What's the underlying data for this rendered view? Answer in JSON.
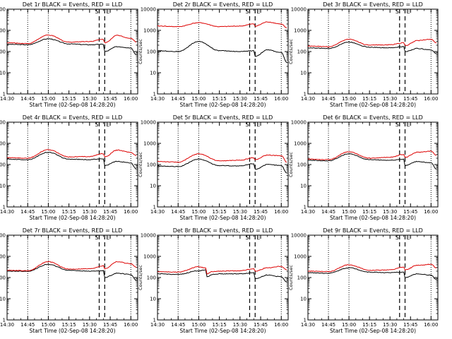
{
  "figure": {
    "background": "#ffffff",
    "event_color": "#000000",
    "lld_color": "#dd0000"
  },
  "chart_data": [
    {
      "type": "line",
      "title": "Det 1r BLACK = Events, RED = LLD",
      "ylabel": "Counts/sec",
      "xlabel": "Start Time (02-Sep-08 14:28:20)",
      "xlim": [
        "14:30",
        "16:05"
      ],
      "ylim": [
        1,
        10000
      ],
      "yscale": "log",
      "xticks": [
        "14:30",
        "14:45",
        "15:00",
        "15:15",
        "15:30",
        "15:45",
        "16:00"
      ],
      "yticks": [
        "1",
        "10",
        "100",
        "1000",
        "10000"
      ],
      "markers": [
        {
          "label": "S",
          "time": "15:37"
        },
        {
          "label": "E",
          "time": "15:41"
        }
      ],
      "dotted_lines": [
        "14:45",
        "15:00",
        "16:00"
      ],
      "series": [
        {
          "name": "BLACK = Events",
          "x": [
            "14:30",
            "14:45",
            "15:00",
            "15:15",
            "15:30",
            "15:40",
            "15:41",
            "15:50",
            "16:00",
            "16:04"
          ],
          "values": [
            220,
            210,
            400,
            230,
            210,
            220,
            100,
            170,
            150,
            70
          ]
        },
        {
          "name": "RED = LLD",
          "x": [
            "14:30",
            "14:45",
            "15:00",
            "15:15",
            "15:30",
            "15:40",
            "15:41",
            "15:50",
            "16:00",
            "16:04"
          ],
          "values": [
            260,
            240,
            600,
            280,
            300,
            380,
            260,
            580,
            420,
            280
          ]
        }
      ]
    },
    {
      "type": "line",
      "title": "Det 2r BLACK = Events, RED = LLD",
      "ylabel": "Counts/sec",
      "xlabel": "Start Time (02-Sep-08 14:28:20)",
      "xlim": [
        "14:30",
        "16:05"
      ],
      "ylim": [
        1,
        10000
      ],
      "yscale": "log",
      "xticks": [
        "14:30",
        "14:45",
        "15:00",
        "15:15",
        "15:30",
        "15:45",
        "16:00"
      ],
      "yticks": [
        "1",
        "10",
        "100",
        "1000",
        "10000"
      ],
      "markers": [
        {
          "label": "S",
          "time": "15:37"
        },
        {
          "label": "E",
          "time": "15:41"
        }
      ],
      "dotted_lines": [
        "14:45",
        "15:00",
        "16:00"
      ],
      "series": [
        {
          "name": "BLACK = Events",
          "x": [
            "14:30",
            "14:45",
            "15:00",
            "15:15",
            "15:30",
            "15:40",
            "15:41",
            "15:50",
            "16:00",
            "16:04"
          ],
          "values": [
            110,
            100,
            300,
            110,
            100,
            110,
            60,
            120,
            90,
            30
          ]
        },
        {
          "name": "RED = LLD",
          "x": [
            "14:30",
            "14:45",
            "15:00",
            "15:15",
            "15:30",
            "15:40",
            "15:41",
            "15:50",
            "16:00",
            "16:04"
          ],
          "values": [
            1600,
            1500,
            2300,
            1500,
            1600,
            2000,
            1600,
            2500,
            2000,
            1300
          ]
        }
      ]
    },
    {
      "type": "line",
      "title": "Det 3r BLACK = Events, RED = LLD",
      "ylabel": "Counts/sec",
      "xlabel": "Start Time (02-Sep-08 14:28:20)",
      "xlim": [
        "14:30",
        "16:05"
      ],
      "ylim": [
        1,
        10000
      ],
      "yscale": "log",
      "xticks": [
        "14:30",
        "14:45",
        "15:00",
        "15:15",
        "15:30",
        "15:45",
        "16:00"
      ],
      "yticks": [
        "1",
        "10",
        "100",
        "1000",
        "10000"
      ],
      "markers": [
        {
          "label": "S",
          "time": "15:37"
        },
        {
          "label": "E",
          "time": "15:41"
        }
      ],
      "dotted_lines": [
        "14:45",
        "15:00",
        "16:00"
      ],
      "series": [
        {
          "name": "BLACK = Events",
          "x": [
            "14:30",
            "14:45",
            "15:00",
            "15:15",
            "15:30",
            "15:40",
            "15:41",
            "15:50",
            "16:00",
            "16:04"
          ],
          "values": [
            150,
            140,
            280,
            160,
            150,
            170,
            100,
            140,
            120,
            80
          ]
        },
        {
          "name": "RED = LLD",
          "x": [
            "14:30",
            "14:45",
            "15:00",
            "15:15",
            "15:30",
            "15:40",
            "15:41",
            "15:50",
            "16:00",
            "16:04"
          ],
          "values": [
            180,
            170,
            380,
            200,
            210,
            260,
            190,
            330,
            380,
            260
          ]
        }
      ]
    },
    {
      "type": "line",
      "title": "Det 4r BLACK = Events, RED = LLD",
      "ylabel": "Counts/sec",
      "xlabel": "Start Time (02-Sep-08 14:28:20)",
      "xlim": [
        "14:30",
        "16:05"
      ],
      "ylim": [
        1,
        10000
      ],
      "yscale": "log",
      "xticks": [
        "14:30",
        "14:45",
        "15:00",
        "15:15",
        "15:30",
        "15:45",
        "16:00"
      ],
      "yticks": [
        "1",
        "10",
        "100",
        "1000",
        "10000"
      ],
      "markers": [
        {
          "label": "S",
          "time": "15:37"
        },
        {
          "label": "E",
          "time": "15:41"
        }
      ],
      "dotted_lines": [
        "14:45",
        "15:00",
        "16:00"
      ],
      "series": [
        {
          "name": "BLACK = Events",
          "x": [
            "14:30",
            "14:45",
            "15:00",
            "15:15",
            "15:30",
            "15:40",
            "15:41",
            "15:50",
            "16:00",
            "16:04"
          ],
          "values": [
            180,
            170,
            380,
            180,
            170,
            190,
            90,
            140,
            120,
            60
          ]
        },
        {
          "name": "RED = LLD",
          "x": [
            "14:30",
            "14:45",
            "15:00",
            "15:15",
            "15:30",
            "15:40",
            "15:41",
            "15:50",
            "16:00",
            "16:04"
          ],
          "values": [
            210,
            200,
            500,
            230,
            240,
            330,
            230,
            480,
            380,
            260
          ]
        }
      ]
    },
    {
      "type": "line",
      "title": "Det 5r BLACK = Events, RED = LLD",
      "ylabel": "Counts/sec",
      "xlabel": "Start Time (02-Sep-08 14:28:20)",
      "xlim": [
        "14:30",
        "16:05"
      ],
      "ylim": [
        1,
        10000
      ],
      "yscale": "log",
      "xticks": [
        "14:30",
        "14:45",
        "15:00",
        "15:15",
        "15:30",
        "15:45",
        "16:00"
      ],
      "yticks": [
        "1",
        "10",
        "100",
        "1000",
        "10000"
      ],
      "markers": [
        {
          "label": "S",
          "time": "15:37"
        },
        {
          "label": "E",
          "time": "15:41"
        }
      ],
      "dotted_lines": [
        "14:45",
        "15:00",
        "16:00"
      ],
      "series": [
        {
          "name": "BLACK = Events",
          "x": [
            "14:30",
            "14:45",
            "15:00",
            "15:15",
            "15:30",
            "15:40",
            "15:41",
            "15:50",
            "16:00",
            "16:04"
          ],
          "values": [
            85,
            80,
            180,
            90,
            85,
            110,
            60,
            100,
            90,
            40
          ]
        },
        {
          "name": "RED = LLD",
          "x": [
            "14:30",
            "14:45",
            "15:00",
            "15:15",
            "15:30",
            "15:40",
            "15:41",
            "15:50",
            "16:00",
            "16:04"
          ],
          "values": [
            140,
            130,
            320,
            150,
            160,
            210,
            170,
            280,
            260,
            130
          ]
        }
      ]
    },
    {
      "type": "line",
      "title": "Det 6r BLACK = Events, RED = LLD",
      "ylabel": "Counts/sec",
      "xlabel": "Start Time (02-Sep-08 14:28:20)",
      "xlim": [
        "14:30",
        "16:05"
      ],
      "ylim": [
        1,
        10000
      ],
      "yscale": "log",
      "xticks": [
        "14:30",
        "14:45",
        "15:00",
        "15:15",
        "15:30",
        "15:45",
        "16:00"
      ],
      "yticks": [
        "1",
        "10",
        "100",
        "1000",
        "10000"
      ],
      "markers": [
        {
          "label": "S",
          "time": "15:37"
        },
        {
          "label": "E",
          "time": "15:41"
        }
      ],
      "dotted_lines": [
        "14:45",
        "15:00",
        "16:00"
      ],
      "series": [
        {
          "name": "BLACK = Events",
          "x": [
            "14:30",
            "14:45",
            "15:00",
            "15:15",
            "15:30",
            "15:40",
            "15:41",
            "15:50",
            "16:00",
            "16:04"
          ],
          "values": [
            160,
            150,
            320,
            170,
            160,
            180,
            90,
            140,
            120,
            60
          ]
        },
        {
          "name": "RED = LLD",
          "x": [
            "14:30",
            "14:45",
            "15:00",
            "15:15",
            "15:30",
            "15:40",
            "15:41",
            "15:50",
            "16:00",
            "16:04"
          ],
          "values": [
            180,
            170,
            400,
            200,
            220,
            300,
            220,
            380,
            430,
            270
          ]
        }
      ]
    },
    {
      "type": "line",
      "title": "Det 7r BLACK = Events, RED = LLD",
      "ylabel": "Counts/sec",
      "xlabel": "Start Time (02-Sep-08 14:28:20)",
      "xlim": [
        "14:30",
        "16:05"
      ],
      "ylim": [
        1,
        10000
      ],
      "yscale": "log",
      "xticks": [
        "14:30",
        "14:45",
        "15:00",
        "15:15",
        "15:30",
        "15:45",
        "16:00"
      ],
      "yticks": [
        "1",
        "10",
        "100",
        "1000",
        "10000"
      ],
      "markers": [
        {
          "label": "S",
          "time": "15:37"
        },
        {
          "label": "E",
          "time": "15:41"
        }
      ],
      "dotted_lines": [
        "14:45",
        "15:00",
        "16:00"
      ],
      "series": [
        {
          "name": "BLACK = Events",
          "x": [
            "14:30",
            "14:45",
            "15:00",
            "15:15",
            "15:30",
            "15:40",
            "15:41",
            "15:50",
            "16:00",
            "16:04"
          ],
          "values": [
            200,
            200,
            420,
            220,
            200,
            210,
            100,
            160,
            140,
            70
          ]
        },
        {
          "name": "RED = LLD",
          "x": [
            "14:30",
            "14:45",
            "15:00",
            "15:15",
            "15:30",
            "15:40",
            "15:41",
            "15:50",
            "16:00",
            "16:04"
          ],
          "values": [
            220,
            210,
            560,
            250,
            260,
            360,
            260,
            560,
            450,
            300
          ]
        }
      ]
    },
    {
      "type": "line",
      "title": "Det 8r BLACK = Events, RED = LLD",
      "ylabel": "Counts/sec",
      "xlabel": "Start Time (02-Sep-08 14:28:20)",
      "xlim": [
        "14:30",
        "16:05"
      ],
      "ylim": [
        1,
        10000
      ],
      "yscale": "log",
      "xticks": [
        "14:30",
        "14:45",
        "15:00",
        "15:15",
        "15:30",
        "15:45",
        "16:00"
      ],
      "yticks": [
        "1",
        "10",
        "100",
        "1000",
        "10000"
      ],
      "markers": [
        {
          "label": "S",
          "time": "15:37"
        },
        {
          "label": "E",
          "time": "15:41"
        }
      ],
      "dotted_lines": [
        "14:45",
        "15:00",
        "16:00"
      ],
      "series": [
        {
          "name": "BLACK = Events",
          "x": [
            "14:30",
            "14:45",
            "15:00",
            "15:05",
            "15:06",
            "15:10",
            "15:15",
            "15:30",
            "15:40",
            "15:41",
            "15:50",
            "16:00",
            "16:04"
          ],
          "values": [
            150,
            140,
            210,
            230,
            110,
            140,
            150,
            150,
            170,
            90,
            130,
            110,
            60
          ]
        },
        {
          "name": "RED = LLD",
          "x": [
            "14:30",
            "14:45",
            "15:00",
            "15:05",
            "15:06",
            "15:10",
            "15:15",
            "15:30",
            "15:40",
            "15:41",
            "15:50",
            "16:00",
            "16:04"
          ],
          "values": [
            190,
            180,
            320,
            280,
            150,
            190,
            200,
            210,
            260,
            200,
            290,
            340,
            230
          ]
        }
      ]
    },
    {
      "type": "line",
      "title": "Det 9r BLACK = Events, RED = LLD",
      "ylabel": "Counts/sec",
      "xlabel": "Start Time (02-Sep-08 14:28:20)",
      "xlim": [
        "14:30",
        "16:05"
      ],
      "ylim": [
        1,
        10000
      ],
      "yscale": "log",
      "xticks": [
        "14:30",
        "14:45",
        "15:00",
        "15:15",
        "15:30",
        "15:45",
        "16:00"
      ],
      "yticks": [
        "1",
        "10",
        "100",
        "1000",
        "10000"
      ],
      "markers": [
        {
          "label": "S",
          "time": "15:37"
        },
        {
          "label": "E",
          "time": "15:41"
        }
      ],
      "dotted_lines": [
        "14:45",
        "15:00",
        "16:00"
      ],
      "series": [
        {
          "name": "BLACK = Events",
          "x": [
            "14:30",
            "14:45",
            "15:00",
            "15:15",
            "15:30",
            "15:40",
            "15:41",
            "15:50",
            "16:00",
            "16:04"
          ],
          "values": [
            170,
            160,
            290,
            180,
            170,
            180,
            100,
            150,
            130,
            80
          ]
        },
        {
          "name": "RED = LLD",
          "x": [
            "14:30",
            "14:45",
            "15:00",
            "15:15",
            "15:30",
            "15:40",
            "15:41",
            "15:50",
            "16:00",
            "16:04"
          ],
          "values": [
            200,
            190,
            400,
            220,
            230,
            310,
            230,
            380,
            420,
            280
          ]
        }
      ]
    }
  ]
}
